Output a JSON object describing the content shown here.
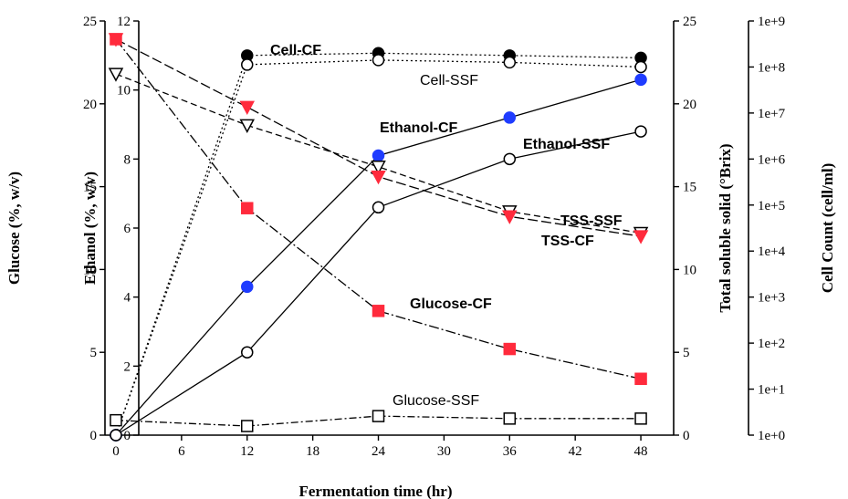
{
  "chart_data": {
    "type": "line",
    "xlabel": "Fermentation time (hr)",
    "x_ticks": [
      0,
      6,
      12,
      18,
      24,
      30,
      36,
      42,
      48
    ],
    "xlim": [
      -1,
      51
    ],
    "axes": {
      "glucose": {
        "label": "Glucose (%, w/v)",
        "ylim": [
          0,
          25
        ],
        "ticks": [
          0,
          5,
          10,
          15,
          20,
          25
        ],
        "tick_labels": [
          "0",
          "5",
          "10",
          "15",
          "20",
          "25"
        ]
      },
      "ethanol": {
        "label": "Ethanol (%, w/v)",
        "ylim": [
          0,
          12
        ],
        "ticks": [
          0,
          2,
          4,
          6,
          8,
          10,
          12
        ],
        "tick_labels": [
          "0",
          "2",
          "4",
          "6",
          "8",
          "10",
          "12"
        ]
      },
      "tss": {
        "label": "Total soluble solid (°Brix)",
        "ylim": [
          0,
          25
        ],
        "ticks": [
          0,
          5,
          10,
          15,
          20,
          25
        ],
        "tick_labels": [
          "0",
          "5",
          "10",
          "15",
          "20",
          "25"
        ]
      },
      "cells": {
        "label": "Cell Count (cell/ml)",
        "scale": "log",
        "ylim": [
          0,
          9
        ],
        "ticks": [
          0,
          1,
          2,
          3,
          4,
          5,
          6,
          7,
          8,
          9
        ],
        "tick_labels": [
          "1e+0",
          "1e+1",
          "1e+2",
          "1e+3",
          "1e+4",
          "1e+5",
          "1e+6",
          "1e+7",
          "1e+8",
          "1e+9"
        ]
      }
    },
    "series": [
      {
        "id": "cell-cf",
        "name": "Cell-CF",
        "axis": "cells",
        "x": [
          0,
          12,
          24,
          36,
          48
        ],
        "y": [
          0,
          8.25,
          8.3,
          8.25,
          8.2
        ],
        "dash": "2,3",
        "marker": "circle",
        "fill": "#000000",
        "stroke": "#000000",
        "label_bold": true
      },
      {
        "id": "cell-ssf",
        "name": "Cell-SSF",
        "axis": "cells",
        "x": [
          0,
          12,
          24,
          36,
          48
        ],
        "y": [
          0,
          8.05,
          8.15,
          8.1,
          8.0
        ],
        "dash": "2,3",
        "marker": "circle",
        "fill": "#ffffff",
        "stroke": "#000000",
        "label_bold": false
      },
      {
        "id": "ethanol-cf",
        "name": "Ethanol-CF",
        "axis": "ethanol",
        "x": [
          0,
          12,
          24,
          36,
          48
        ],
        "y": [
          0,
          4.3,
          8.1,
          9.2,
          10.3
        ],
        "dash": "",
        "marker": "circle",
        "fill": "#1f3cff",
        "stroke": "#1f3cff",
        "label_bold": true
      },
      {
        "id": "ethanol-ssf",
        "name": "Ethanol-SSF",
        "axis": "ethanol",
        "x": [
          0,
          12,
          24,
          36,
          48
        ],
        "y": [
          0,
          2.4,
          6.6,
          8.0,
          8.8
        ],
        "dash": "",
        "marker": "circle",
        "fill": "#ffffff",
        "stroke": "#000000",
        "label_bold": true
      },
      {
        "id": "tss-ssf",
        "name": "TSS-SSF",
        "axis": "tss",
        "x": [
          0,
          12,
          24,
          36,
          48
        ],
        "y": [
          21.8,
          18.7,
          16.2,
          13.5,
          12.2
        ],
        "dash": "7,4",
        "marker": "tri-down",
        "fill": "#ffffff",
        "stroke": "#000000",
        "label_bold": true
      },
      {
        "id": "tss-cf",
        "name": "TSS-CF",
        "axis": "tss",
        "x": [
          0,
          12,
          24,
          36,
          48
        ],
        "y": [
          23.9,
          19.8,
          15.6,
          13.2,
          12.0
        ],
        "dash": "11,4",
        "marker": "tri-down",
        "fill": "#ff2a3c",
        "stroke": "#ff2a3c",
        "label_bold": true
      },
      {
        "id": "glucose-cf",
        "name": "Glucose-CF",
        "axis": "glucose",
        "x": [
          0,
          12,
          24,
          36,
          48
        ],
        "y": [
          23.9,
          13.7,
          7.5,
          5.2,
          3.4
        ],
        "dash": "11,3,2,3",
        "marker": "square",
        "fill": "#ff2a3c",
        "stroke": "#ff2a3c",
        "label_bold": true
      },
      {
        "id": "glucose-ssf",
        "name": "Glucose-SSF",
        "axis": "glucose",
        "x": [
          0,
          12,
          24,
          36,
          48
        ],
        "y": [
          0.9,
          0.55,
          1.15,
          1.0,
          1.0
        ],
        "dash": "8,3,2,3",
        "marker": "square",
        "fill": "#ffffff",
        "stroke": "#000000",
        "label_bold": false
      }
    ]
  }
}
